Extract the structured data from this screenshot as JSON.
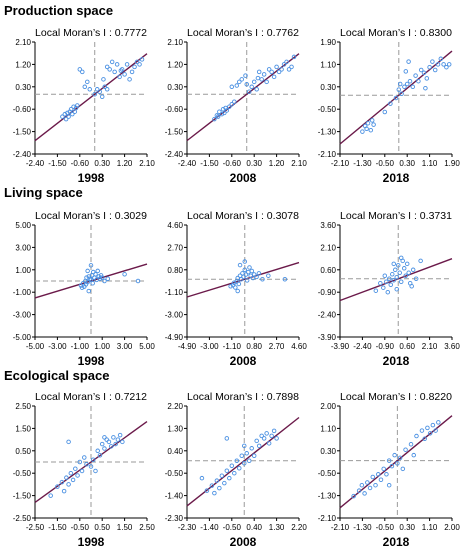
{
  "sections": [
    {
      "title": "Production space"
    },
    {
      "title": "Living space"
    },
    {
      "title": "Ecological space"
    }
  ],
  "colors": {
    "points": "#4a90e2",
    "line": "#6b1a4a",
    "axis": "#000000",
    "dash": "#9a9a9a"
  },
  "chart_data": [
    {
      "type": "scatter",
      "title": "Local Moran’s I : 0.7772",
      "xlabel": "1998",
      "xlim": [
        -2.4,
        2.1
      ],
      "ylim": [
        -2.4,
        2.1
      ],
      "xticks": [
        "-2.40",
        "-1.50",
        "-0.60",
        "0.30",
        "1.20",
        "2.10"
      ],
      "yticks": [
        "2.10",
        "1.20",
        "0.30",
        "-0.60",
        "-1.50",
        "-2.40"
      ],
      "slope": 0.7772,
      "points": [
        [
          -1.3,
          -0.9
        ],
        [
          -1.2,
          -0.8
        ],
        [
          -1.1,
          -0.75
        ],
        [
          -1.05,
          -0.9
        ],
        [
          -1.0,
          -0.7
        ],
        [
          -0.95,
          -0.6
        ],
        [
          -0.9,
          -0.8
        ],
        [
          -0.85,
          -0.5
        ],
        [
          -0.8,
          -0.7
        ],
        [
          -0.75,
          -0.55
        ],
        [
          -0.7,
          -0.45
        ],
        [
          -1.15,
          -1.0
        ],
        [
          -0.6,
          1.0
        ],
        [
          -0.5,
          0.9
        ],
        [
          -0.4,
          0.3
        ],
        [
          -0.3,
          0.5
        ],
        [
          -0.2,
          0.2
        ],
        [
          0.0,
          0.0
        ],
        [
          0.1,
          0.2
        ],
        [
          0.2,
          0.1
        ],
        [
          0.3,
          -0.1
        ],
        [
          0.4,
          0.3
        ],
        [
          0.5,
          0.2
        ],
        [
          0.6,
          1.0
        ],
        [
          0.7,
          1.3
        ],
        [
          0.8,
          0.9
        ],
        [
          0.9,
          1.2
        ],
        [
          1.0,
          0.7
        ],
        [
          1.1,
          1.0
        ],
        [
          1.2,
          0.8
        ],
        [
          1.3,
          1.2
        ],
        [
          1.4,
          0.6
        ],
        [
          1.5,
          0.9
        ],
        [
          1.6,
          1.1
        ],
        [
          1.7,
          1.3
        ],
        [
          1.8,
          1.2
        ],
        [
          1.9,
          1.4
        ],
        [
          0.5,
          1.1
        ],
        [
          0.35,
          0.6
        ],
        [
          1.05,
          0.95
        ]
      ]
    },
    {
      "type": "scatter",
      "title": "Local Moran’s I : 0.7762",
      "xlabel": "2008",
      "xlim": [
        -2.4,
        2.1
      ],
      "ylim": [
        -2.4,
        2.1
      ],
      "xticks": [
        "-2.40",
        "-1.50",
        "-0.60",
        "0.30",
        "1.20",
        "2.10"
      ],
      "yticks": [
        "2.10",
        "1.20",
        "0.30",
        "-0.60",
        "-1.50",
        "-2.40"
      ],
      "slope": 0.7762,
      "points": [
        [
          -1.3,
          -1.0
        ],
        [
          -1.2,
          -0.85
        ],
        [
          -1.15,
          -0.9
        ],
        [
          -1.1,
          -0.7
        ],
        [
          -1.0,
          -0.8
        ],
        [
          -0.95,
          -0.6
        ],
        [
          -0.9,
          -0.75
        ],
        [
          -0.85,
          -0.55
        ],
        [
          -0.8,
          -0.65
        ],
        [
          -0.7,
          -0.5
        ],
        [
          -0.6,
          -0.4
        ],
        [
          -0.5,
          -0.3
        ],
        [
          -0.6,
          0.3
        ],
        [
          -0.4,
          0.35
        ],
        [
          -0.3,
          0.5
        ],
        [
          -0.2,
          0.6
        ],
        [
          0.0,
          0.4
        ],
        [
          0.1,
          0.1
        ],
        [
          0.2,
          0.3
        ],
        [
          0.3,
          0.5
        ],
        [
          0.4,
          0.2
        ],
        [
          0.5,
          0.9
        ],
        [
          0.6,
          0.6
        ],
        [
          0.7,
          0.8
        ],
        [
          0.8,
          0.5
        ],
        [
          0.9,
          1.0
        ],
        [
          1.0,
          0.9
        ],
        [
          1.1,
          0.7
        ],
        [
          1.2,
          1.1
        ],
        [
          1.3,
          0.9
        ],
        [
          1.4,
          1.0
        ],
        [
          1.5,
          1.2
        ],
        [
          1.6,
          1.3
        ],
        [
          1.7,
          1.0
        ],
        [
          1.8,
          1.1
        ],
        [
          1.9,
          1.5
        ],
        [
          -0.05,
          0.75
        ],
        [
          0.45,
          0.65
        ]
      ]
    },
    {
      "type": "scatter",
      "title": "Local Moran’s I : 0.8300",
      "xlabel": "2018",
      "xlim": [
        -2.1,
        1.9
      ],
      "ylim": [
        -2.1,
        1.9
      ],
      "xticks": [
        "-2.10",
        "-1.30",
        "-0.50",
        "0.30",
        "1.10",
        "1.90"
      ],
      "yticks": [
        "1.90",
        "1.10",
        "0.30",
        "-0.50",
        "-1.30",
        "-2.10"
      ],
      "slope": 0.83,
      "points": [
        [
          -1.3,
          -1.3
        ],
        [
          -1.2,
          -1.1
        ],
        [
          -1.15,
          -1.2
        ],
        [
          -1.1,
          -1.0
        ],
        [
          -1.0,
          -1.25
        ],
        [
          -0.95,
          -0.9
        ],
        [
          -0.9,
          -1.05
        ],
        [
          -0.5,
          -0.6
        ],
        [
          -0.3,
          -0.3
        ],
        [
          -0.1,
          -0.1
        ],
        [
          0.0,
          0.2
        ],
        [
          0.05,
          0.4
        ],
        [
          0.1,
          0.05
        ],
        [
          0.2,
          0.3
        ],
        [
          0.3,
          0.4
        ],
        [
          0.4,
          0.5
        ],
        [
          0.5,
          0.3
        ],
        [
          0.6,
          0.7
        ],
        [
          0.7,
          0.5
        ],
        [
          0.8,
          0.9
        ],
        [
          0.9,
          0.8
        ],
        [
          1.0,
          0.6
        ],
        [
          1.1,
          1.0
        ],
        [
          1.2,
          1.2
        ],
        [
          1.3,
          0.9
        ],
        [
          1.4,
          1.1
        ],
        [
          1.5,
          1.3
        ],
        [
          1.6,
          1.1
        ],
        [
          1.7,
          1.0
        ],
        [
          1.8,
          1.1
        ],
        [
          0.35,
          1.2
        ],
        [
          0.25,
          0.85
        ],
        [
          0.95,
          0.25
        ]
      ]
    },
    {
      "type": "scatter",
      "title": "Local Moran’s I : 0.3029",
      "xlabel": "1998",
      "xlim": [
        -5,
        5
      ],
      "ylim": [
        -5,
        5
      ],
      "xticks": [
        "-5.00",
        "-3.00",
        "-1.00",
        "1.00",
        "3.00",
        "5.00"
      ],
      "yticks": [
        "5.00",
        "3.00",
        "1.00",
        "-1.00",
        "-3.00",
        "-5.00"
      ],
      "slope": 0.3029,
      "points": [
        [
          -0.9,
          -0.4
        ],
        [
          -0.8,
          -0.6
        ],
        [
          -0.7,
          -0.2
        ],
        [
          -0.6,
          -0.5
        ],
        [
          -0.5,
          0.0
        ],
        [
          -0.45,
          -0.3
        ],
        [
          -0.4,
          0.3
        ],
        [
          -0.3,
          -0.1
        ],
        [
          -0.2,
          0.4
        ],
        [
          -0.1,
          0.2
        ],
        [
          0.0,
          0.1
        ],
        [
          0.1,
          0.5
        ],
        [
          0.15,
          -0.2
        ],
        [
          0.2,
          0.8
        ],
        [
          0.3,
          0.3
        ],
        [
          0.4,
          0.6
        ],
        [
          0.5,
          0.1
        ],
        [
          0.6,
          0.9
        ],
        [
          0.7,
          0.4
        ],
        [
          0.8,
          0.2
        ],
        [
          0.9,
          0.5
        ],
        [
          1.0,
          0.3
        ],
        [
          1.2,
          0.0
        ],
        [
          1.5,
          0.2
        ],
        [
          0.0,
          1.4
        ],
        [
          -0.3,
          0.9
        ],
        [
          3.0,
          0.6
        ],
        [
          4.2,
          0.0
        ],
        [
          -0.2,
          -0.9
        ]
      ]
    },
    {
      "type": "scatter",
      "title": "Local Moran’s I : 0.3078",
      "xlabel": "2008",
      "xlim": [
        -4.9,
        4.6
      ],
      "ylim": [
        -4.9,
        4.6
      ],
      "xticks": [
        "-4.90",
        "-3.00",
        "-1.10",
        "0.80",
        "2.70",
        "4.60"
      ],
      "yticks": [
        "4.60",
        "2.70",
        "0.80",
        "-1.10",
        "-3.00",
        "-4.90"
      ],
      "slope": 0.3078,
      "points": [
        [
          -1.2,
          -0.6
        ],
        [
          -1.0,
          -0.5
        ],
        [
          -0.9,
          -0.3
        ],
        [
          -0.8,
          -0.7
        ],
        [
          -0.7,
          -0.2
        ],
        [
          -0.6,
          0.1
        ],
        [
          -0.5,
          -0.4
        ],
        [
          -0.4,
          0.3
        ],
        [
          -0.3,
          0.0
        ],
        [
          -0.2,
          0.5
        ],
        [
          -0.1,
          0.2
        ],
        [
          0.0,
          0.8
        ],
        [
          0.1,
          0.4
        ],
        [
          0.2,
          -0.1
        ],
        [
          0.3,
          0.6
        ],
        [
          0.4,
          1.0
        ],
        [
          0.5,
          0.3
        ],
        [
          0.6,
          0.7
        ],
        [
          0.7,
          0.1
        ],
        [
          0.8,
          0.4
        ],
        [
          1.0,
          0.2
        ],
        [
          1.2,
          0.5
        ],
        [
          1.5,
          0.0
        ],
        [
          2.0,
          0.3
        ],
        [
          -0.4,
          1.2
        ],
        [
          0.0,
          1.5
        ],
        [
          3.4,
          0.0
        ],
        [
          -0.6,
          -1.0
        ]
      ]
    },
    {
      "type": "scatter",
      "title": "Local Moran’s I : 0.3731",
      "xlabel": "2018",
      "xlim": [
        -3.9,
        3.6
      ],
      "ylim": [
        -3.9,
        3.6
      ],
      "xticks": [
        "-3.90",
        "-2.40",
        "-0.90",
        "0.60",
        "2.10",
        "3.60"
      ],
      "yticks": [
        "3.60",
        "2.10",
        "0.60",
        "-0.90",
        "-2.40",
        "-3.90"
      ],
      "slope": 0.3731,
      "points": [
        [
          -1.2,
          -0.3
        ],
        [
          -1.0,
          -0.6
        ],
        [
          -0.9,
          0.2
        ],
        [
          -0.8,
          -0.2
        ],
        [
          -0.7,
          -0.9
        ],
        [
          -0.6,
          0.0
        ],
        [
          -0.5,
          -0.4
        ],
        [
          -0.4,
          0.3
        ],
        [
          -0.3,
          -0.1
        ],
        [
          -0.2,
          0.6
        ],
        [
          -0.1,
          0.1
        ],
        [
          0.0,
          0.9
        ],
        [
          0.1,
          0.4
        ],
        [
          0.2,
          -0.2
        ],
        [
          0.3,
          1.2
        ],
        [
          0.4,
          0.7
        ],
        [
          0.5,
          0.2
        ],
        [
          0.6,
          1.0
        ],
        [
          0.7,
          0.4
        ],
        [
          0.8,
          -0.3
        ],
        [
          1.0,
          0.6
        ],
        [
          1.2,
          0.0
        ],
        [
          0.2,
          1.4
        ],
        [
          -0.3,
          1.0
        ],
        [
          1.5,
          1.2
        ],
        [
          -1.5,
          -0.8
        ],
        [
          0.9,
          -0.5
        ],
        [
          -0.1,
          -0.7
        ]
      ]
    },
    {
      "type": "scatter",
      "title": "Local Moran’s I : 0.7212",
      "xlabel": "1998",
      "xlim": [
        -2.5,
        2.5
      ],
      "ylim": [
        -2.5,
        2.5
      ],
      "xticks": [
        "-2.50",
        "-1.50",
        "-0.50",
        "0.50",
        "1.50",
        "2.50"
      ],
      "yticks": [
        "2.50",
        "1.50",
        "0.50",
        "-0.50",
        "-1.50",
        "-2.50"
      ],
      "slope": 0.7212,
      "points": [
        [
          -1.5,
          -1.1
        ],
        [
          -1.3,
          -0.9
        ],
        [
          -1.2,
          -1.3
        ],
        [
          -1.1,
          -0.7
        ],
        [
          -1.0,
          -1.0
        ],
        [
          -0.9,
          -0.5
        ],
        [
          -0.8,
          -0.8
        ],
        [
          -0.7,
          -0.3
        ],
        [
          -0.6,
          -0.6
        ],
        [
          -0.5,
          0.0
        ],
        [
          -0.4,
          -0.4
        ],
        [
          -0.3,
          0.2
        ],
        [
          -0.2,
          -0.1
        ],
        [
          0.0,
          -0.2
        ],
        [
          0.1,
          0.1
        ],
        [
          0.2,
          -0.4
        ],
        [
          0.3,
          0.5
        ],
        [
          0.4,
          0.3
        ],
        [
          0.5,
          0.8
        ],
        [
          0.6,
          0.6
        ],
        [
          0.7,
          1.0
        ],
        [
          0.8,
          0.9
        ],
        [
          0.9,
          0.7
        ],
        [
          1.0,
          1.1
        ],
        [
          1.1,
          0.8
        ],
        [
          1.2,
          1.0
        ],
        [
          1.3,
          1.2
        ],
        [
          1.4,
          0.9
        ],
        [
          -1.0,
          0.9
        ],
        [
          0.6,
          1.1
        ],
        [
          -1.8,
          -1.5
        ]
      ]
    },
    {
      "type": "scatter",
      "title": "Local Moran’s I : 0.7898",
      "xlabel": "2008",
      "xlim": [
        -2.3,
        2.2
      ],
      "ylim": [
        -2.3,
        2.2
      ],
      "xticks": [
        "-2.30",
        "-1.40",
        "-0.50",
        "0.40",
        "1.30",
        "2.20"
      ],
      "yticks": [
        "2.20",
        "1.30",
        "0.40",
        "-0.50",
        "-1.40",
        "-2.30"
      ],
      "slope": 0.7898,
      "points": [
        [
          -1.5,
          -1.2
        ],
        [
          -1.3,
          -1.0
        ],
        [
          -1.2,
          -1.3
        ],
        [
          -1.1,
          -0.8
        ],
        [
          -1.0,
          -1.1
        ],
        [
          -0.9,
          -0.6
        ],
        [
          -0.8,
          -0.9
        ],
        [
          -0.7,
          -0.4
        ],
        [
          -0.6,
          -0.7
        ],
        [
          -0.5,
          -0.2
        ],
        [
          -0.4,
          -0.5
        ],
        [
          -0.3,
          0.0
        ],
        [
          -0.2,
          -0.3
        ],
        [
          -0.1,
          0.2
        ],
        [
          0.0,
          -0.1
        ],
        [
          0.1,
          0.3
        ],
        [
          0.2,
          0.0
        ],
        [
          0.3,
          0.5
        ],
        [
          0.4,
          0.2
        ],
        [
          0.5,
          0.8
        ],
        [
          0.6,
          0.6
        ],
        [
          0.7,
          1.0
        ],
        [
          0.8,
          0.9
        ],
        [
          0.9,
          1.1
        ],
        [
          1.0,
          0.7
        ],
        [
          1.1,
          1.0
        ],
        [
          1.2,
          1.2
        ],
        [
          1.3,
          0.9
        ],
        [
          -0.7,
          0.9
        ],
        [
          0.0,
          0.6
        ],
        [
          -1.7,
          -0.7
        ]
      ]
    },
    {
      "type": "scatter",
      "title": "Local Moran’s I : 0.8220",
      "xlabel": "2018",
      "xlim": [
        -2.1,
        2.0
      ],
      "ylim": [
        -2.1,
        2.0
      ],
      "xticks": [
        "-2.10",
        "-1.30",
        "-0.50",
        "0.30",
        "1.10",
        "2.00"
      ],
      "yticks": [
        "2.00",
        "1.10",
        "0.30",
        "-0.50",
        "-1.30",
        "-2.10"
      ],
      "slope": 0.822,
      "points": [
        [
          -1.4,
          -1.1
        ],
        [
          -1.3,
          -0.9
        ],
        [
          -1.2,
          -1.2
        ],
        [
          -1.1,
          -0.8
        ],
        [
          -1.0,
          -1.0
        ],
        [
          -0.9,
          -0.6
        ],
        [
          -0.8,
          -0.9
        ],
        [
          -0.7,
          -0.5
        ],
        [
          -0.6,
          -0.7
        ],
        [
          -0.5,
          -0.3
        ],
        [
          -0.4,
          -0.5
        ],
        [
          -0.3,
          0.0
        ],
        [
          -0.2,
          -0.2
        ],
        [
          -0.1,
          0.2
        ],
        [
          0.0,
          -0.1
        ],
        [
          0.1,
          0.1
        ],
        [
          0.2,
          -0.3
        ],
        [
          0.3,
          0.4
        ],
        [
          0.5,
          0.6
        ],
        [
          0.7,
          0.9
        ],
        [
          0.9,
          1.1
        ],
        [
          1.0,
          0.8
        ],
        [
          1.1,
          1.2
        ],
        [
          1.2,
          1.0
        ],
        [
          1.3,
          1.3
        ],
        [
          1.4,
          1.1
        ],
        [
          1.5,
          1.4
        ],
        [
          -1.6,
          -1.3
        ],
        [
          -0.3,
          -0.9
        ],
        [
          0.6,
          0.2
        ]
      ]
    }
  ]
}
